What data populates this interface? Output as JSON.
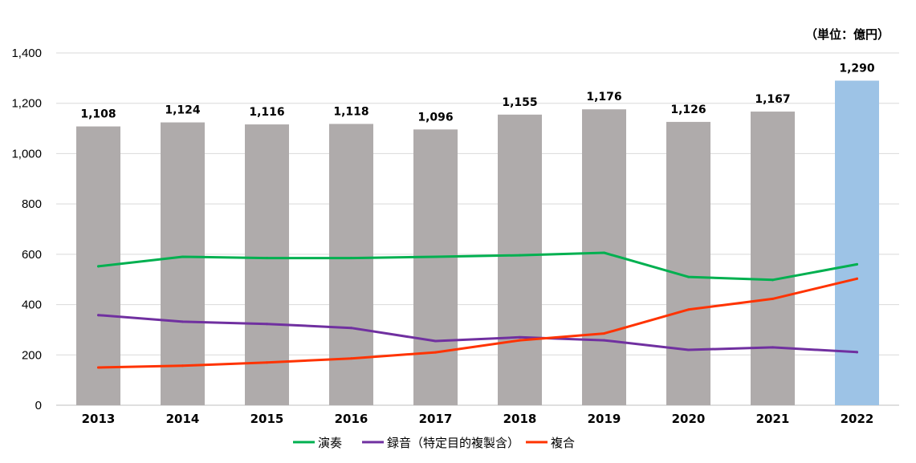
{
  "chart_data": {
    "type": "bar",
    "unit_label": "（単位：億円）",
    "categories": [
      "2013",
      "2014",
      "2015",
      "2016",
      "2017",
      "2018",
      "2019",
      "2020",
      "2021",
      "2022"
    ],
    "bar_values": [
      1108,
      1124,
      1116,
      1118,
      1096,
      1155,
      1176,
      1126,
      1167,
      1290
    ],
    "bar_labels": [
      "1,108",
      "1,124",
      "1,116",
      "1,118",
      "1,096",
      "1,155",
      "1,176",
      "1,126",
      "1,167",
      "1,290"
    ],
    "bar_color": "#AFABAB",
    "highlight_color": "#9DC3E6",
    "highlight_index": 9,
    "series": [
      {
        "name": "演奏",
        "color": "#00B050",
        "values": [
          552,
          590,
          585,
          585,
          590,
          596,
          606,
          510,
          498,
          560
        ]
      },
      {
        "name": "録音（特定目的複製含）",
        "color": "#7030A0",
        "values": [
          358,
          332,
          323,
          307,
          255,
          270,
          258,
          220,
          230,
          211
        ]
      },
      {
        "name": "複合",
        "color": "#FF3300",
        "values": [
          150,
          157,
          170,
          186,
          210,
          258,
          285,
          380,
          423,
          503
        ]
      }
    ],
    "ylim": [
      0,
      1400
    ],
    "yticks": [
      "0",
      "200",
      "400",
      "600",
      "800",
      "1,000",
      "1,200",
      "1,400"
    ],
    "ytick_values": [
      0,
      200,
      400,
      600,
      800,
      1000,
      1200,
      1400
    ],
    "grid": true,
    "legend_position": "bottom"
  }
}
